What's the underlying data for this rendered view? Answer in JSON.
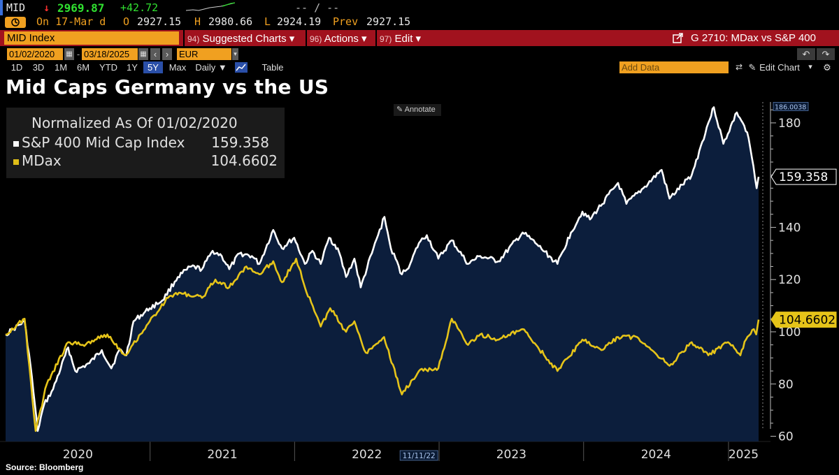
{
  "ticker_bar": {
    "ticker": "MID",
    "arrow": "↓",
    "last_price": "2969.87",
    "net_change": "+42.72",
    "range_placeholder": "-- / --",
    "on_date": "On 17-Mar d",
    "open_label": "O",
    "open_value": "2927.15",
    "high_label": "H",
    "high_value": "2980.66",
    "low_label": "L",
    "low_value": "2924.19",
    "prev_label": "Prev",
    "prev_value": "2927.15"
  },
  "function_bar": {
    "security": "MID Index",
    "menus": [
      {
        "num": "94)",
        "label": "Suggested Charts ▾"
      },
      {
        "num": "96)",
        "label": "Actions ▾"
      },
      {
        "num": "97)",
        "label": "Edit ▾"
      }
    ],
    "chart_id": "G 2710: MDax vs S&P 400"
  },
  "date_bar": {
    "start_date": "01/02/2020",
    "end_date": "03/18/2025",
    "currency": "EUR"
  },
  "range_bar": {
    "ranges": [
      "1D",
      "3D",
      "1M",
      "6M",
      "YTD",
      "1Y",
      "5Y",
      "Max"
    ],
    "selected": "5Y",
    "frequency": "Daily ▼",
    "table_label": "Table",
    "add_data_placeholder": "Add Data",
    "edit_chart_label": "Edit Chart"
  },
  "title": "Mid Caps Germany vs the US",
  "annotate_label": "Annotate",
  "source": "Source: Bloomberg",
  "colors": {
    "sp400": "#ffffff",
    "mdax": "#e6c419",
    "area_fill": "#0c1e3c",
    "function_bar": "#a1121e",
    "accent": "#f0a020"
  },
  "chart_data": {
    "type": "line",
    "title": "Mid Caps Germany vs the US",
    "legend": {
      "title": "Normalized As Of 01/02/2020",
      "placement": "top-left",
      "entries": [
        {
          "name": "S&P 400 Mid Cap Index",
          "value": "159.358"
        },
        {
          "name": "MDax",
          "value": "104.6602"
        }
      ]
    },
    "xlabel": "",
    "ylabel": "",
    "ylim": [
      58,
      188
    ],
    "yticks": [
      60,
      80,
      100,
      120,
      140,
      160,
      180
    ],
    "year_labels": [
      "2020",
      "2021",
      "2022",
      "2023",
      "2024",
      "2025"
    ],
    "year_starts": [
      "2020-01-02",
      "2021-01-01",
      "2022-01-01",
      "2023-01-01",
      "2024-01-01",
      "2025-01-01"
    ],
    "xlim": [
      "2020-01-02",
      "2025-03-18"
    ],
    "max_label": "186.0038",
    "crosshair_date": "11/11/22",
    "grid": false,
    "series": [
      {
        "name": "S&P 400 Mid Cap Index",
        "last_label": "159.358",
        "area": true,
        "points": [
          [
            "2020-01-02",
            99
          ],
          [
            "2020-01-21",
            101
          ],
          [
            "2020-02-19",
            104
          ],
          [
            "2020-03-05",
            87
          ],
          [
            "2020-03-23",
            62
          ],
          [
            "2020-04-08",
            72
          ],
          [
            "2020-05-01",
            78
          ],
          [
            "2020-06-08",
            94
          ],
          [
            "2020-06-26",
            85
          ],
          [
            "2020-08-01",
            88
          ],
          [
            "2020-09-01",
            93
          ],
          [
            "2020-09-25",
            86
          ],
          [
            "2020-10-15",
            93
          ],
          [
            "2020-11-02",
            91
          ],
          [
            "2020-11-20",
            104
          ],
          [
            "2020-12-31",
            109
          ],
          [
            "2021-02-01",
            112
          ],
          [
            "2021-03-12",
            121
          ],
          [
            "2021-04-15",
            125
          ],
          [
            "2021-05-12",
            124
          ],
          [
            "2021-06-08",
            131
          ],
          [
            "2021-07-01",
            129
          ],
          [
            "2021-07-20",
            124
          ],
          [
            "2021-08-15",
            130
          ],
          [
            "2021-09-15",
            129
          ],
          [
            "2021-10-04",
            126
          ],
          [
            "2021-11-08",
            139
          ],
          [
            "2021-11-30",
            132
          ],
          [
            "2021-12-31",
            136
          ],
          [
            "2022-01-27",
            126
          ],
          [
            "2022-02-15",
            131
          ],
          [
            "2022-03-08",
            126
          ],
          [
            "2022-03-29",
            136
          ],
          [
            "2022-04-20",
            132
          ],
          [
            "2022-05-11",
            121
          ],
          [
            "2022-06-01",
            128
          ],
          [
            "2022-06-17",
            117
          ],
          [
            "2022-07-15",
            130
          ],
          [
            "2022-08-16",
            144
          ],
          [
            "2022-09-01",
            132
          ],
          [
            "2022-09-29",
            122
          ],
          [
            "2022-10-20",
            126
          ],
          [
            "2022-11-11",
            134
          ],
          [
            "2022-12-01",
            137
          ],
          [
            "2022-12-30",
            128
          ],
          [
            "2023-02-02",
            135
          ],
          [
            "2023-03-15",
            126
          ],
          [
            "2023-04-15",
            129
          ],
          [
            "2023-05-31",
            127
          ],
          [
            "2023-07-31",
            138
          ],
          [
            "2023-09-01",
            134
          ],
          [
            "2023-10-27",
            126
          ],
          [
            "2023-11-30",
            138
          ],
          [
            "2023-12-29",
            146
          ],
          [
            "2024-01-17",
            143
          ],
          [
            "2024-03-28",
            157
          ],
          [
            "2024-04-18",
            149
          ],
          [
            "2024-05-31",
            155
          ],
          [
            "2024-07-16",
            162
          ],
          [
            "2024-08-05",
            151
          ],
          [
            "2024-09-30",
            160
          ],
          [
            "2024-11-11",
            180
          ],
          [
            "2024-11-25",
            186
          ],
          [
            "2024-12-19",
            172
          ],
          [
            "2025-01-22",
            184
          ],
          [
            "2025-02-06",
            180
          ],
          [
            "2025-02-21",
            174
          ],
          [
            "2025-03-13",
            155
          ],
          [
            "2025-03-18",
            159.358
          ]
        ]
      },
      {
        "name": "MDax",
        "last_label": "104.6602",
        "area": false,
        "points": [
          [
            "2020-01-02",
            99
          ],
          [
            "2020-02-19",
            105
          ],
          [
            "2020-03-18",
            62
          ],
          [
            "2020-04-15",
            80
          ],
          [
            "2020-06-08",
            96
          ],
          [
            "2020-07-15",
            95
          ],
          [
            "2020-08-15",
            97
          ],
          [
            "2020-09-15",
            99
          ],
          [
            "2020-10-30",
            91
          ],
          [
            "2020-12-31",
            104
          ],
          [
            "2021-02-15",
            113
          ],
          [
            "2021-03-15",
            115
          ],
          [
            "2021-05-12",
            113
          ],
          [
            "2021-06-15",
            120
          ],
          [
            "2021-07-20",
            117
          ],
          [
            "2021-09-01",
            125
          ],
          [
            "2021-10-04",
            122
          ],
          [
            "2021-11-08",
            127
          ],
          [
            "2021-11-30",
            119
          ],
          [
            "2022-01-05",
            128
          ],
          [
            "2022-01-27",
            117
          ],
          [
            "2022-03-08",
            102
          ],
          [
            "2022-04-01",
            109
          ],
          [
            "2022-05-11",
            100
          ],
          [
            "2022-06-01",
            104
          ],
          [
            "2022-06-30",
            92
          ],
          [
            "2022-08-15",
            98
          ],
          [
            "2022-09-29",
            76
          ],
          [
            "2022-11-11",
            85
          ],
          [
            "2022-12-30",
            86
          ],
          [
            "2023-02-02",
            105
          ],
          [
            "2023-03-15",
            95
          ],
          [
            "2023-04-15",
            99
          ],
          [
            "2023-06-01",
            97
          ],
          [
            "2023-07-31",
            101
          ],
          [
            "2023-10-27",
            85
          ],
          [
            "2023-12-29",
            97
          ],
          [
            "2024-02-15",
            93
          ],
          [
            "2024-03-28",
            98
          ],
          [
            "2024-05-15",
            98
          ],
          [
            "2024-06-15",
            94
          ],
          [
            "2024-08-05",
            87
          ],
          [
            "2024-09-30",
            96
          ],
          [
            "2024-11-11",
            91
          ],
          [
            "2024-12-31",
            96
          ],
          [
            "2025-01-31",
            91
          ],
          [
            "2025-02-14",
            97
          ],
          [
            "2025-03-06",
            101
          ],
          [
            "2025-03-12",
            99
          ],
          [
            "2025-03-18",
            104.6602
          ]
        ]
      }
    ]
  }
}
